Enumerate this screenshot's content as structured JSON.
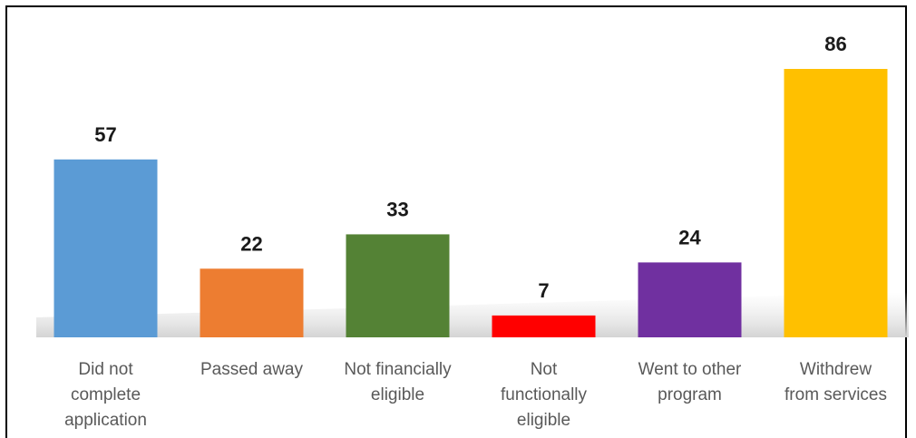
{
  "chart_data": {
    "type": "bar",
    "categories": [
      [
        "Did not",
        "complete",
        "application"
      ],
      [
        "Passed away"
      ],
      [
        "Not financially",
        "eligible"
      ],
      [
        "Not",
        "functionally",
        "eligible"
      ],
      [
        "Went to other",
        "program"
      ],
      [
        "Withdrew",
        "from services"
      ]
    ],
    "values": [
      57,
      22,
      33,
      7,
      24,
      86
    ],
    "data_labels": [
      "57",
      "22",
      "33",
      "7",
      "24",
      "86"
    ],
    "colors": [
      "#5b9bd5",
      "#ed7d31",
      "#548235",
      "#ff0000",
      "#7030a0",
      "#ffc000"
    ],
    "title": "",
    "xlabel": "",
    "ylabel": "",
    "ylim": [
      0,
      86
    ],
    "grid": false,
    "legend": "none"
  }
}
